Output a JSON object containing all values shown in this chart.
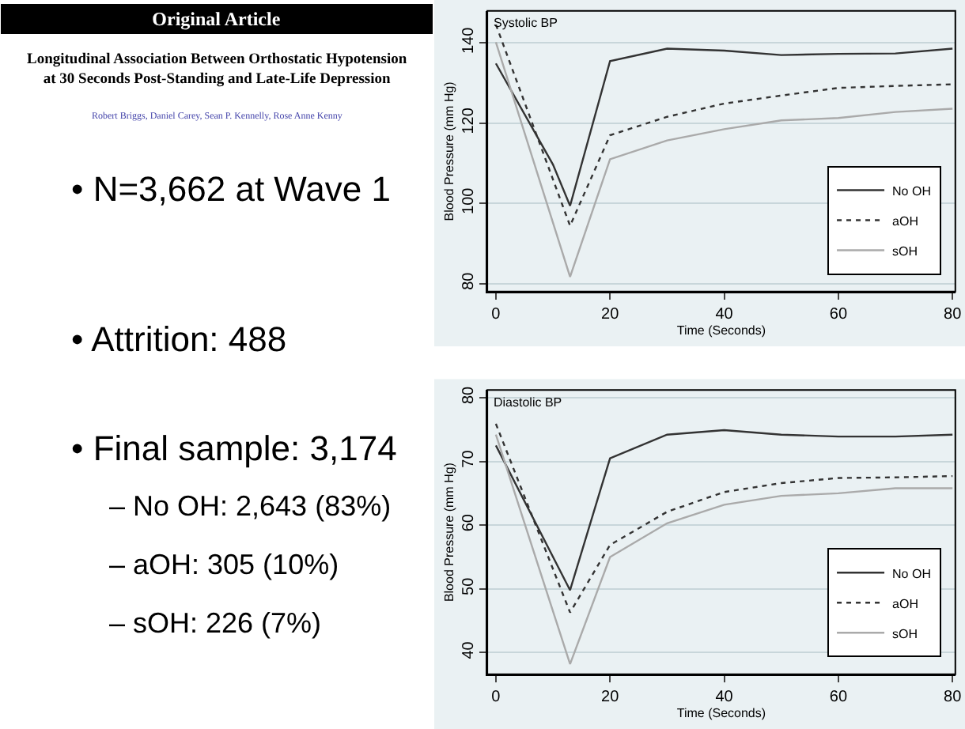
{
  "chart_data": [
    {
      "type": "line",
      "title": "Systolic BP",
      "xlabel": "Time (Seconds)",
      "ylabel": "Blood Pressure (mm Hg)",
      "xlim": [
        -1.5,
        80.5
      ],
      "xticks": [
        0,
        20,
        40,
        60,
        80
      ],
      "ylim": [
        78,
        148
      ],
      "yticks": [
        80,
        100,
        120,
        140
      ],
      "grid": "y",
      "legend": "bottom right",
      "marker": "none",
      "annotations": [
        "Original Article",
        "Longitudinal Association Between Orthostatic Hypotension at 30 Seconds Post-Standing and Late-Life Depression",
        "Robert Briggs, Daniel Carey, Sean P. Kennelly, Rose Anne Kenny",
        "• N=3,662 at Wave 1",
        "• Attrition: 488",
        "• Final sample: 3,174",
        "– No OH: 2,643 (83%)",
        "– aOH: 305 (10%)",
        "– sOH: 226 (7%)"
      ],
      "series": [
        {
          "name": "No OH",
          "color": "#333333",
          "line_style": "solid",
          "x": [
            0,
            10,
            13,
            20,
            30,
            40,
            50,
            60,
            70,
            80
          ],
          "values": [
            134.9,
            109.7,
            99.4,
            135.5,
            138.6,
            138.1,
            137,
            137.3,
            137.4,
            138.6
          ]
        },
        {
          "name": "aOH",
          "color": "#333333",
          "line_style": "dotted",
          "x": [
            0,
            13,
            20,
            30,
            40,
            50,
            60,
            70,
            80
          ],
          "values": [
            144.6,
            94.4,
            117,
            121.6,
            124.9,
            126.9,
            128.8,
            129.3,
            129.7
          ]
        },
        {
          "name": "sOH",
          "color": "#aaaaaa",
          "line_style": "solid",
          "x": [
            0,
            13,
            20,
            30,
            40,
            50,
            60,
            70,
            80
          ],
          "values": [
            140.2,
            81.7,
            111,
            115.7,
            118.5,
            120.7,
            121.3,
            122.8,
            123.6
          ]
        }
      ]
    },
    {
      "type": "line",
      "title": "Diastolic BP",
      "xlabel": "Time (Seconds)",
      "ylabel": "Blood Pressure (mm Hg)",
      "xlim": [
        -1.5,
        80.5
      ],
      "xticks": [
        0,
        20,
        40,
        60,
        80
      ],
      "ylim": [
        36.6,
        81.2
      ],
      "yticks": [
        40,
        50,
        60,
        70,
        80
      ],
      "grid": "y",
      "legend": "bottom right",
      "marker": "none",
      "series": [
        {
          "name": "No OH",
          "color": "#333333",
          "line_style": "solid",
          "x": [
            0,
            13,
            20,
            30,
            40,
            50,
            60,
            70,
            80
          ],
          "values": [
            72.5,
            49.8,
            70.5,
            74.2,
            74.9,
            74.2,
            73.9,
            73.9,
            74.2
          ]
        },
        {
          "name": "aOH",
          "color": "#333333",
          "line_style": "dotted",
          "x": [
            0,
            13,
            20,
            30,
            40,
            50,
            60,
            70,
            80
          ],
          "values": [
            75.9,
            46.3,
            56.9,
            62.1,
            65.2,
            66.6,
            67.4,
            67.5,
            67.7
          ]
        },
        {
          "name": "sOH",
          "color": "#aaaaaa",
          "line_style": "solid",
          "x": [
            0,
            13,
            20,
            30,
            40,
            50,
            60,
            70,
            80
          ],
          "values": [
            74.2,
            38.2,
            55,
            60.3,
            63.2,
            64.6,
            65,
            65.8,
            65.8
          ]
        }
      ]
    }
  ]
}
